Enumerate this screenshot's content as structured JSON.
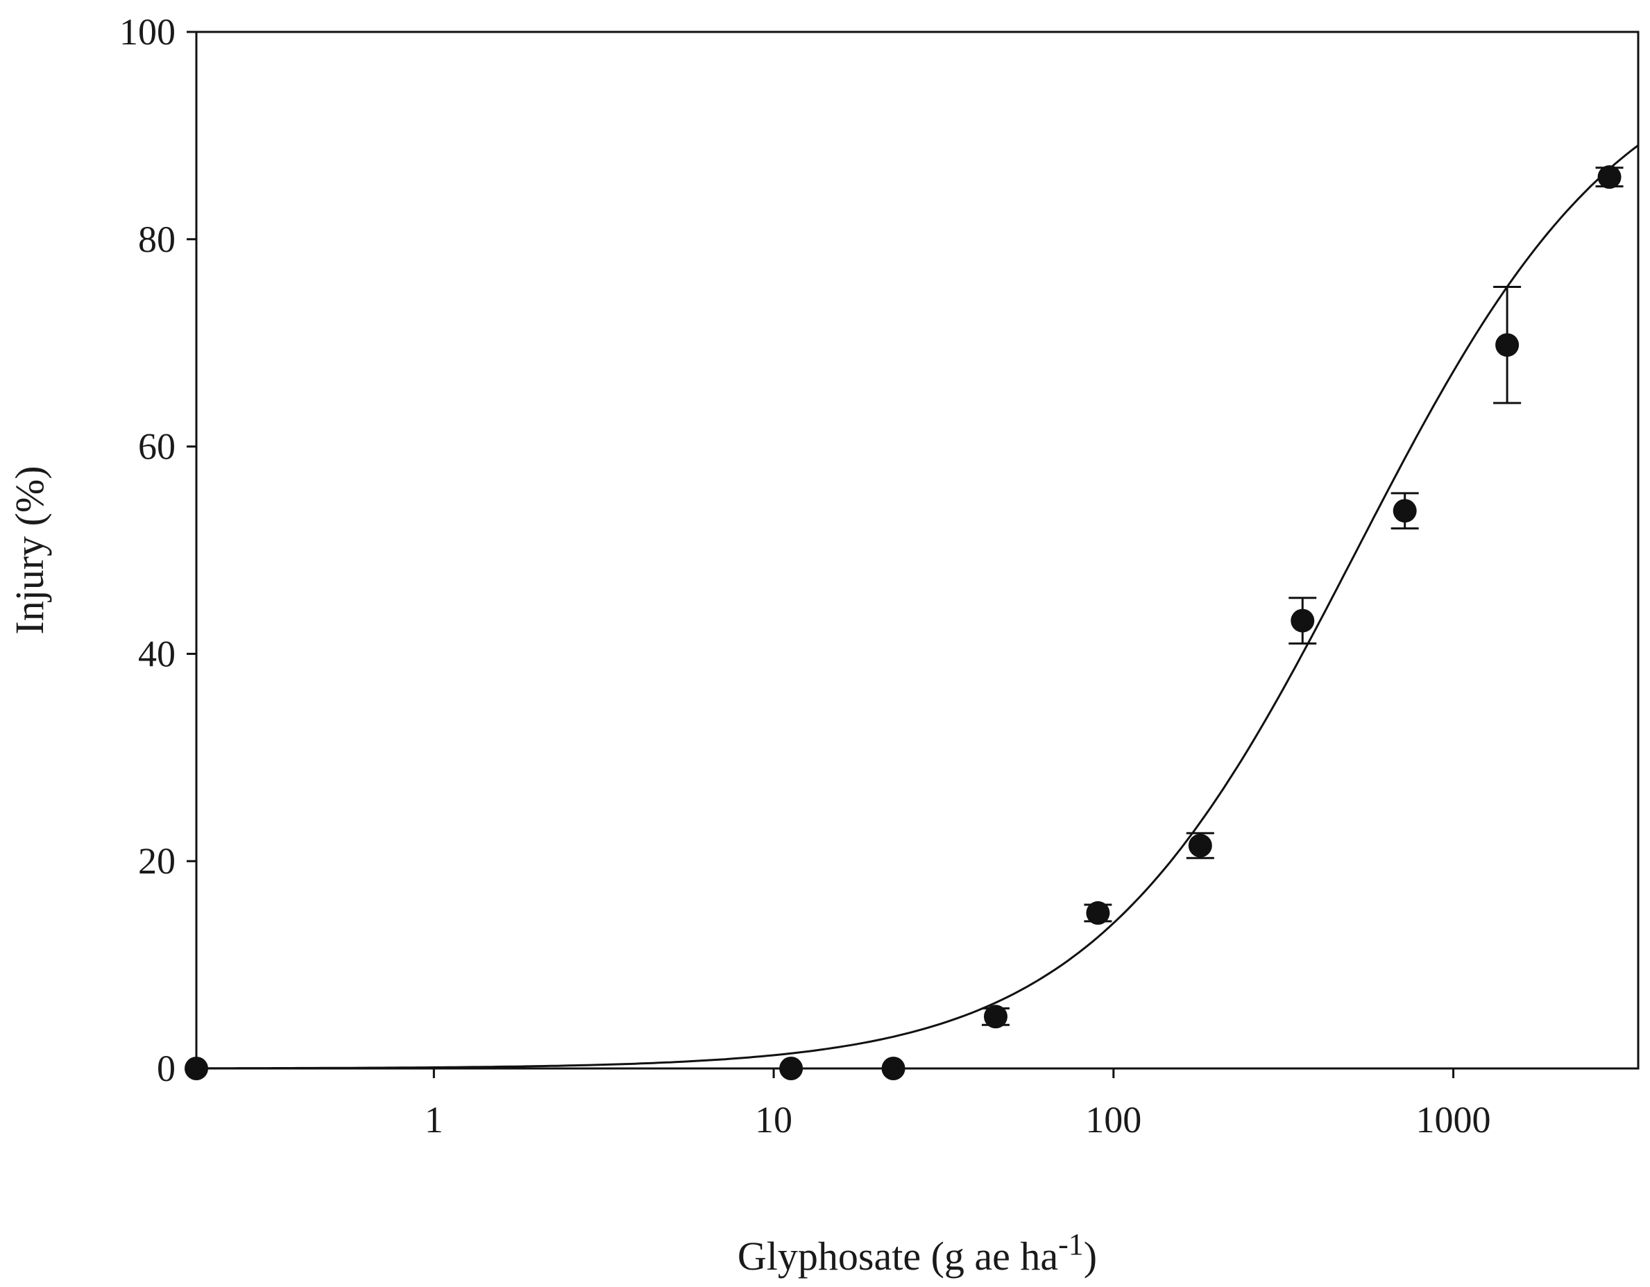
{
  "chart_data": {
    "type": "scatter",
    "title": "",
    "xlabel": "Glyphosate (g ae ha",
    "xlabel_superscript": "-1",
    "xlabel_close": ")",
    "ylabel": "Injury (%)",
    "x_scale": "log",
    "xlim": [
      0.2,
      3500
    ],
    "ylim": [
      0,
      100
    ],
    "x_ticks": [
      1,
      10,
      100,
      1000
    ],
    "x_tick_labels": [
      "1",
      "10",
      "100",
      "1000"
    ],
    "y_ticks": [
      0,
      20,
      40,
      60,
      80,
      100
    ],
    "y_tick_labels": [
      "0",
      "20",
      "40",
      "60",
      "80",
      "100"
    ],
    "grid": false,
    "legend": "none",
    "series": [
      {
        "points": [
          {
            "x": 0.2,
            "y": 0,
            "err": 0
          },
          {
            "x": 11.25,
            "y": 0,
            "err": 0
          },
          {
            "x": 22.5,
            "y": 0,
            "err": 0
          },
          {
            "x": 45,
            "y": 5,
            "err": 0.8
          },
          {
            "x": 90,
            "y": 15,
            "err": 0.8
          },
          {
            "x": 180,
            "y": 21.5,
            "err": 1.2
          },
          {
            "x": 360,
            "y": 43.2,
            "err": 2.2
          },
          {
            "x": 720,
            "y": 53.8,
            "err": 1.7
          },
          {
            "x": 1440,
            "y": 69.8,
            "err": 5.6
          },
          {
            "x": 2880,
            "y": 86,
            "err": 0.9
          }
        ]
      }
    ],
    "fit_curve": {
      "model": "log-logistic",
      "upper": 100,
      "ed50": 520,
      "slope": 1.1
    },
    "colors": {
      "axis": "#111111",
      "marker": "#111111",
      "curve": "#111111"
    }
  }
}
